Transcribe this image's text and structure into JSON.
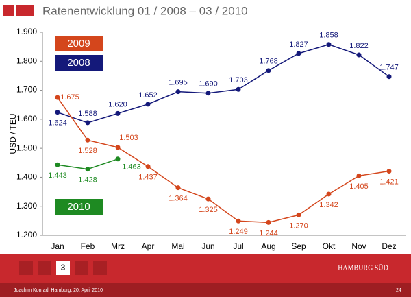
{
  "chart_data": {
    "type": "line",
    "title": "Ratenentwicklung 01 / 2008 – 03 / 2010",
    "y_label": "USD / TEU",
    "categories": [
      "Jan",
      "Feb",
      "Mrz",
      "Apr",
      "Mai",
      "Jun",
      "Jul",
      "Aug",
      "Sep",
      "Okt",
      "Nov",
      "Dez"
    ],
    "ylim": [
      1200,
      1900
    ],
    "yticks": [
      {
        "value": 1200,
        "label": "1.200"
      },
      {
        "value": 1300,
        "label": "1.300"
      },
      {
        "value": 1400,
        "label": "1.400"
      },
      {
        "value": 1500,
        "label": "1.500"
      },
      {
        "value": 1600,
        "label": "1.600"
      },
      {
        "value": 1700,
        "label": "1.700"
      },
      {
        "value": 1800,
        "label": "1.800"
      },
      {
        "value": 1900,
        "label": "1.900"
      }
    ],
    "grid": false,
    "series": [
      {
        "name": "2008",
        "color": "#14197a",
        "values": [
          1624,
          1588,
          1620,
          1652,
          1695,
          1690,
          1703,
          1768,
          1827,
          1858,
          1822,
          1747
        ],
        "value_labels": [
          "1.624",
          "1.588",
          "1.620",
          "1.652",
          "1.695",
          "1.690",
          "1.703",
          "1.768",
          "1.827",
          "1.858",
          "1.822",
          "1.747"
        ]
      },
      {
        "name": "2009",
        "color": "#d4461c",
        "values": [
          1675,
          1528,
          1503,
          1437,
          1364,
          1325,
          1249,
          1244,
          1270,
          1342,
          1405,
          1421
        ],
        "value_labels": [
          "1.675",
          "1.528",
          "1.503",
          "1.437",
          "1.364",
          "1.325",
          "1.249",
          "1.244",
          "1.270",
          "1.342",
          "1.405",
          "1.421"
        ]
      },
      {
        "name": "2010",
        "color": "#1e8a22",
        "values": [
          1443,
          1428,
          1463,
          null,
          null,
          null,
          null,
          null,
          null,
          null,
          null,
          null
        ],
        "value_labels": [
          "1.443",
          "1.428",
          "1.463",
          null,
          null,
          null,
          null,
          null,
          null,
          null,
          null,
          null
        ]
      }
    ]
  },
  "slide_number": "3",
  "logo": "HAMBURG SÜD",
  "footer": {
    "author": "Joachim Konrad, Hamburg, 20. April 2010",
    "page": "24"
  }
}
